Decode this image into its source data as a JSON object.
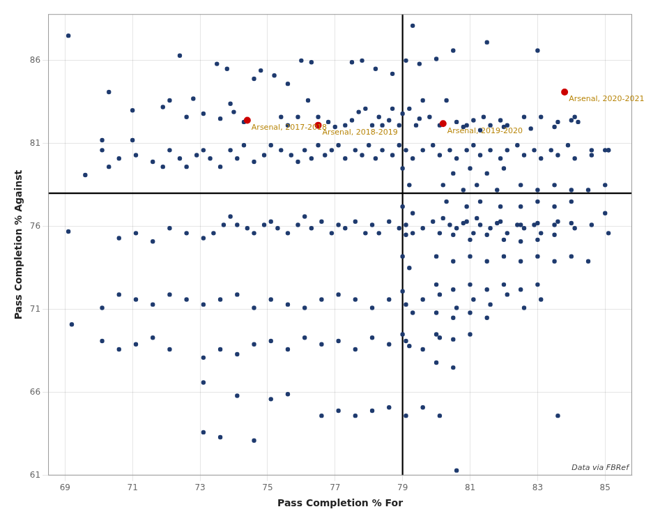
{
  "chart_data": {
    "type": "scatter",
    "xlabel": "Pass Completion % For",
    "ylabel": "Pass Completion % Against",
    "xlim": [
      68.5,
      85.8
    ],
    "ylim": [
      61.0,
      88.8
    ],
    "xticks": [
      69,
      71,
      73,
      75,
      77,
      79,
      81,
      83,
      85
    ],
    "yticks": [
      61,
      66,
      71,
      76,
      81,
      86
    ],
    "grid": true,
    "watermark": "Data via FBRef",
    "reference_lines": [
      {
        "axis": "x",
        "value": 79.0,
        "color": "#000000"
      },
      {
        "axis": "y",
        "value": 78.0,
        "color": "#000000"
      }
    ],
    "series": [
      {
        "color": "#1e3a6e",
        "x": [
          69.1,
          72.4,
          73.5,
          73.8,
          76.0,
          76.3,
          77.5,
          77.8,
          78.2,
          78.7,
          79.3,
          80.5,
          81.5,
          83.0,
          80.0,
          74.8,
          75.2,
          74.6,
          75.6,
          79.1,
          79.5,
          70.3,
          72.1,
          72.8,
          73.9,
          71.0,
          71.9,
          72.6,
          73.1,
          73.6,
          74.0,
          74.3,
          75.4,
          75.9,
          75.6,
          76.2,
          76.5,
          76.8,
          77.0,
          77.3,
          77.5,
          77.7,
          77.9,
          78.1,
          78.3,
          78.4,
          78.6,
          78.7,
          78.9,
          79.0,
          79.2,
          79.4,
          79.6,
          79.8,
          80.1,
          80.3,
          80.6,
          80.9,
          81.1,
          81.4,
          81.6,
          81.9,
          82.1,
          82.6,
          83.1,
          83.6,
          84.1,
          84.2,
          84.6,
          85.1,
          79.5,
          80.8,
          81.3,
          82.0,
          82.8,
          83.5,
          84.0,
          85.0,
          69.6,
          70.3,
          70.1,
          70.6,
          71.1,
          71.6,
          71.9,
          72.1,
          72.4,
          72.6,
          72.9,
          73.1,
          73.3,
          73.6,
          73.9,
          74.1,
          74.3,
          74.6,
          74.9,
          75.1,
          75.4,
          75.7,
          75.9,
          76.1,
          76.3,
          76.5,
          76.7,
          76.9,
          77.1,
          77.3,
          77.6,
          77.8,
          78.0,
          78.2,
          78.4,
          78.7,
          78.9,
          79.1,
          79.3,
          79.6,
          79.9,
          80.1,
          80.4,
          80.6,
          80.9,
          81.1,
          81.3,
          81.6,
          81.9,
          82.1,
          82.4,
          82.6,
          82.9,
          83.1,
          83.4,
          83.6,
          83.9,
          84.1,
          84.6,
          85.1,
          69.1,
          70.6,
          71.1,
          71.6,
          72.1,
          72.6,
          73.1,
          73.4,
          73.7,
          73.9,
          74.1,
          74.4,
          74.6,
          74.9,
          75.1,
          75.3,
          75.6,
          75.9,
          76.1,
          76.3,
          76.6,
          76.9,
          77.1,
          77.3,
          77.6,
          77.9,
          78.1,
          78.3,
          78.6,
          78.9,
          79.1,
          79.3,
          79.6,
          79.9,
          80.1,
          80.4,
          80.6,
          80.9,
          81.1,
          81.3,
          81.6,
          81.9,
          82.1,
          82.4,
          82.6,
          82.9,
          83.1,
          83.6,
          84.1,
          84.6,
          85.1,
          70.1,
          70.6,
          71.1,
          71.6,
          72.1,
          72.6,
          73.1,
          73.6,
          74.1,
          74.6,
          75.1,
          75.6,
          76.1,
          76.6,
          77.1,
          77.6,
          78.1,
          78.6,
          79.1,
          79.6,
          80.1,
          80.6,
          81.1,
          81.6,
          82.1,
          82.6,
          83.1,
          70.1,
          70.6,
          71.1,
          71.6,
          72.1,
          73.1,
          73.6,
          74.1,
          74.6,
          75.1,
          75.6,
          76.1,
          76.6,
          77.1,
          77.6,
          78.1,
          78.6,
          79.1,
          79.6,
          80.1,
          73.1,
          74.1,
          75.1,
          75.6,
          76.6,
          77.1,
          77.6,
          78.1,
          78.6,
          79.1,
          79.6,
          80.1,
          83.6,
          73.1,
          73.6,
          74.6,
          80.6,
          69.2,
          70.1,
          71.0,
          79.0,
          79.2,
          79.0,
          79.3,
          79.1,
          79.0,
          79.2,
          79.0,
          79.3,
          79.0,
          79.2,
          80.5,
          81.0,
          81.5,
          82.0,
          80.2,
          80.8,
          81.2,
          81.8,
          80.3,
          80.9,
          81.3,
          81.9,
          80.2,
          80.8,
          81.2,
          81.8,
          82.5,
          83.0,
          83.5,
          84.0,
          82.5,
          83.0,
          83.5,
          84.0,
          82.5,
          83.0,
          83.5,
          84.0,
          84.5,
          85.0,
          80.5,
          81.0,
          81.5,
          82.0,
          82.5,
          83.0,
          83.5,
          80.0,
          80.5,
          81.0,
          81.5,
          82.0,
          82.5,
          83.0,
          83.5,
          84.0,
          84.5,
          80.0,
          80.5,
          81.0,
          81.5,
          82.0,
          82.5,
          83.0,
          80.0,
          80.5,
          81.0,
          81.5,
          80.0,
          80.5,
          81.0,
          80.0,
          80.5,
          85.0
        ],
        "values": [
          87.5,
          86.3,
          85.8,
          85.5,
          86.0,
          85.9,
          85.9,
          86.0,
          85.5,
          85.2,
          88.1,
          86.6,
          87.1,
          86.6,
          86.1,
          85.4,
          85.1,
          84.9,
          84.6,
          86.0,
          85.8,
          84.1,
          83.6,
          83.7,
          83.4,
          83.0,
          83.2,
          82.6,
          82.8,
          82.5,
          82.9,
          82.3,
          82.6,
          82.6,
          82.1,
          83.6,
          82.6,
          82.3,
          82.0,
          82.1,
          82.4,
          82.9,
          83.1,
          82.1,
          82.6,
          82.1,
          82.4,
          83.1,
          82.1,
          82.8,
          83.1,
          82.1,
          83.6,
          82.6,
          82.1,
          83.6,
          82.3,
          82.1,
          82.4,
          82.6,
          82.1,
          82.4,
          82.1,
          82.6,
          82.6,
          82.3,
          82.6,
          82.3,
          80.6,
          80.6,
          82.5,
          82.0,
          81.8,
          82.0,
          81.9,
          82.0,
          82.4,
          80.6,
          79.1,
          79.6,
          80.6,
          80.1,
          80.3,
          79.9,
          79.6,
          80.6,
          80.1,
          79.6,
          80.3,
          80.6,
          80.1,
          79.6,
          80.6,
          80.1,
          80.9,
          79.9,
          80.3,
          80.9,
          80.6,
          80.3,
          79.9,
          80.6,
          80.1,
          80.9,
          80.3,
          80.6,
          80.9,
          80.1,
          80.6,
          80.3,
          80.9,
          80.1,
          80.6,
          80.3,
          80.9,
          80.6,
          80.1,
          80.6,
          80.9,
          80.3,
          80.6,
          80.1,
          80.6,
          80.9,
          80.3,
          80.6,
          80.1,
          80.6,
          80.9,
          80.3,
          80.6,
          80.1,
          80.6,
          80.3,
          80.9,
          80.1,
          80.3,
          80.6,
          75.7,
          75.3,
          75.6,
          75.1,
          75.9,
          75.6,
          75.3,
          75.6,
          76.1,
          76.6,
          76.1,
          75.9,
          75.6,
          76.1,
          76.3,
          75.9,
          75.6,
          76.1,
          76.6,
          75.9,
          76.3,
          75.6,
          76.1,
          75.9,
          76.3,
          75.6,
          76.1,
          75.6,
          76.3,
          75.9,
          76.1,
          75.6,
          75.9,
          76.3,
          75.6,
          76.1,
          75.9,
          76.3,
          75.6,
          76.1,
          75.9,
          76.3,
          75.6,
          76.1,
          75.9,
          76.1,
          75.6,
          76.3,
          75.9,
          76.1,
          75.6,
          71.1,
          71.9,
          71.6,
          71.3,
          71.9,
          71.6,
          71.3,
          71.6,
          71.9,
          71.1,
          71.6,
          71.3,
          71.1,
          71.6,
          71.9,
          71.6,
          71.1,
          71.6,
          71.3,
          71.6,
          71.9,
          71.1,
          71.6,
          71.3,
          71.9,
          71.1,
          71.6,
          69.1,
          68.6,
          68.9,
          69.3,
          68.6,
          68.1,
          68.6,
          68.3,
          68.9,
          69.1,
          68.6,
          69.3,
          68.9,
          69.1,
          68.6,
          69.3,
          68.9,
          69.1,
          68.6,
          69.3,
          66.6,
          65.8,
          65.6,
          65.9,
          64.6,
          64.9,
          64.6,
          64.9,
          65.1,
          64.6,
          65.1,
          64.6,
          64.6,
          63.6,
          63.3,
          63.1,
          61.3,
          70.1,
          81.2,
          81.2,
          79.5,
          78.5,
          77.2,
          76.8,
          75.5,
          74.2,
          73.5,
          72.1,
          70.8,
          69.5,
          68.8,
          79.2,
          79.5,
          79.2,
          79.5,
          78.5,
          78.2,
          78.5,
          78.2,
          77.5,
          77.2,
          77.5,
          77.2,
          76.5,
          76.2,
          76.5,
          76.2,
          76.1,
          76.2,
          76.1,
          76.2,
          77.2,
          77.5,
          77.2,
          77.5,
          78.5,
          78.2,
          78.5,
          78.2,
          78.2,
          78.5,
          75.5,
          75.2,
          75.5,
          75.2,
          75.1,
          75.2,
          75.5,
          74.2,
          73.9,
          74.2,
          73.9,
          74.2,
          73.9,
          74.2,
          73.9,
          74.2,
          73.9,
          72.5,
          72.2,
          72.5,
          72.2,
          72.5,
          72.2,
          72.5,
          70.8,
          70.5,
          70.8,
          70.5,
          69.5,
          69.2,
          69.5,
          67.8,
          67.5,
          76.8
        ]
      },
      {
        "color": "#cc0000",
        "x": [
          74.4,
          76.5,
          80.2,
          83.8
        ],
        "values": [
          82.4,
          82.1,
          82.2,
          84.1
        ],
        "labels": [
          "Arsenal, 2017-2018",
          "Arsenal, 2018-2019",
          "Arsenal, 2019-2020",
          "Arsenal, 2020-2021"
        ],
        "label_color": "#b8860b"
      }
    ]
  }
}
